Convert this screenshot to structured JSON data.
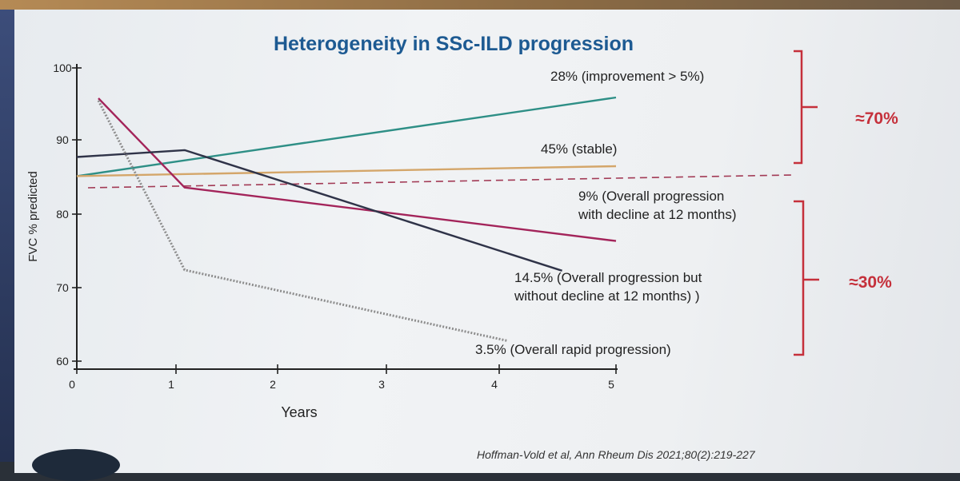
{
  "chart_data": {
    "type": "line",
    "title": "Heterogeneity in SSc-ILD progression",
    "xlabel": "Years",
    "ylabel": "FVC % predicted",
    "xlim": [
      0,
      5
    ],
    "ylim": [
      60,
      100
    ],
    "xticks": [
      "0",
      "1",
      "2",
      "3",
      "4",
      "5"
    ],
    "yticks": [
      "60",
      "70",
      "80",
      "90",
      "100"
    ],
    "series": [
      {
        "name": "28% (improvement > 5%)",
        "color": "#2e8f86",
        "dash": "solid",
        "points": [
          [
            0,
            85.3
          ],
          [
            5,
            95.6
          ]
        ]
      },
      {
        "name": "45% (stable)",
        "color": "#d4a66a",
        "dash": "solid",
        "points": [
          [
            0,
            85.3
          ],
          [
            5,
            86.6
          ]
        ]
      },
      {
        "name_lines": [
          "9% (Overall progression",
          "with decline at 12 months)"
        ],
        "color": "#a3245a",
        "dash": "solid",
        "points": [
          [
            0.2,
            95.5
          ],
          [
            1,
            83.8
          ],
          [
            5,
            76.8
          ]
        ]
      },
      {
        "name_lines": [
          "14.5% (Overall progression but",
          "without decline at 12 months) )"
        ],
        "color": "#2f3348",
        "dash": "solid",
        "points": [
          [
            0,
            87.8
          ],
          [
            1,
            88.7
          ],
          [
            4.5,
            72.9
          ]
        ]
      },
      {
        "name": "3.5% (Overall rapid progression)",
        "color": "#8d8d8d",
        "dash": "dotted",
        "points": [
          [
            0.2,
            95.2
          ],
          [
            1,
            73.0
          ],
          [
            4,
            63.7
          ]
        ]
      }
    ],
    "reference_lines": [
      {
        "name": "threshold-upper",
        "points": [
          [
            0,
            83.3
          ],
          [
            5,
            84.8
          ]
        ],
        "dash": "dashed",
        "color": "#a23a55"
      }
    ],
    "groups": [
      {
        "label": "≈70%",
        "color": "#c5303b"
      },
      {
        "label": "≈30%",
        "color": "#c5303b"
      }
    ],
    "citation": "Hoffman-Vold et al, Ann Rheum Dis 2021;80(2):219-227"
  }
}
